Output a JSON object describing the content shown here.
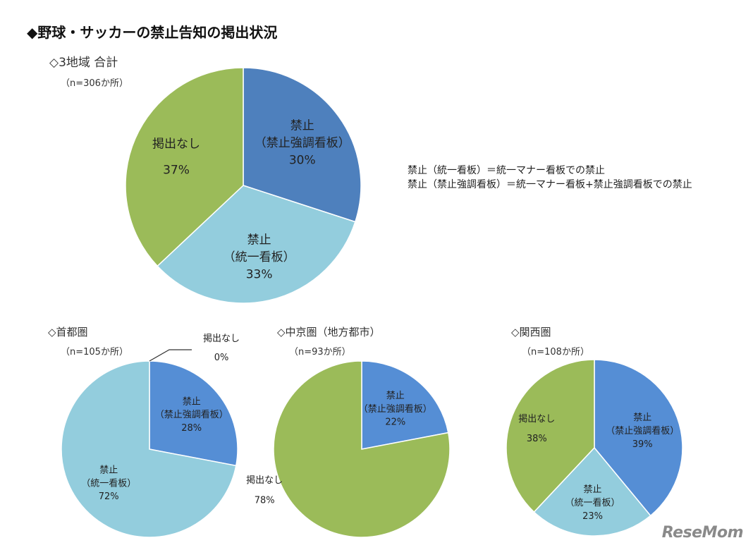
{
  "page_title": "◆野球・サッカーの禁止告知の掲出状況",
  "notes": [
    "禁止（統一看板）＝統一マナー看板での禁止",
    "禁止（禁止強調看板）＝統一マナー看板+禁止強調看板での禁止"
  ],
  "colors": {
    "emphasis_dark": "#4E80BD",
    "emphasis_bright": "#558ED5",
    "unified": "#93CDDD",
    "none": "#9BBB59"
  },
  "watermark": "ReseMom",
  "chart_data": [
    {
      "type": "pie",
      "title": "◇3地域 合計",
      "subtitle": "（n=306か所）",
      "start": "12 o'clock",
      "direction": "clockwise",
      "slices": [
        {
          "label": [
            "禁止",
            "（禁止強調看板）"
          ],
          "value": 30,
          "value_label": "30%"
        },
        {
          "label": [
            "禁止",
            "（統一看板）"
          ],
          "value": 33,
          "value_label": "33%"
        },
        {
          "label": [
            "掲出なし"
          ],
          "value": 37,
          "value_label": "37%"
        }
      ]
    },
    {
      "type": "pie",
      "title": "◇首都圏",
      "subtitle": "（n=105か所）",
      "start": "12 o'clock",
      "direction": "clockwise",
      "slices": [
        {
          "label": [
            "禁止",
            "（禁止強調看板）"
          ],
          "value": 28,
          "value_label": "28%"
        },
        {
          "label": [
            "禁止",
            "（統一看板）"
          ],
          "value": 72,
          "value_label": "72%"
        },
        {
          "label": [
            "掲出なし"
          ],
          "value": 0,
          "value_label": "0%"
        }
      ]
    },
    {
      "type": "pie",
      "title": "◇中京圏（地方都市）",
      "subtitle": "（n=93か所）",
      "start": "12 o'clock",
      "direction": "clockwise",
      "slices": [
        {
          "label": [
            "禁止",
            "（禁止強調看板）"
          ],
          "value": 22,
          "value_label": "22%"
        },
        {
          "label": [
            "掲出なし"
          ],
          "value": 78,
          "value_label": "78%"
        }
      ]
    },
    {
      "type": "pie",
      "title": "◇関西圏",
      "subtitle": "（n=108か所）",
      "start": "12 o'clock",
      "direction": "clockwise",
      "slices": [
        {
          "label": [
            "禁止",
            "（禁止強調看板）"
          ],
          "value": 39,
          "value_label": "39%"
        },
        {
          "label": [
            "禁止",
            "（統一看板）"
          ],
          "value": 23,
          "value_label": "23%"
        },
        {
          "label": [
            "掲出なし"
          ],
          "value": 38,
          "value_label": "38%"
        }
      ]
    }
  ]
}
